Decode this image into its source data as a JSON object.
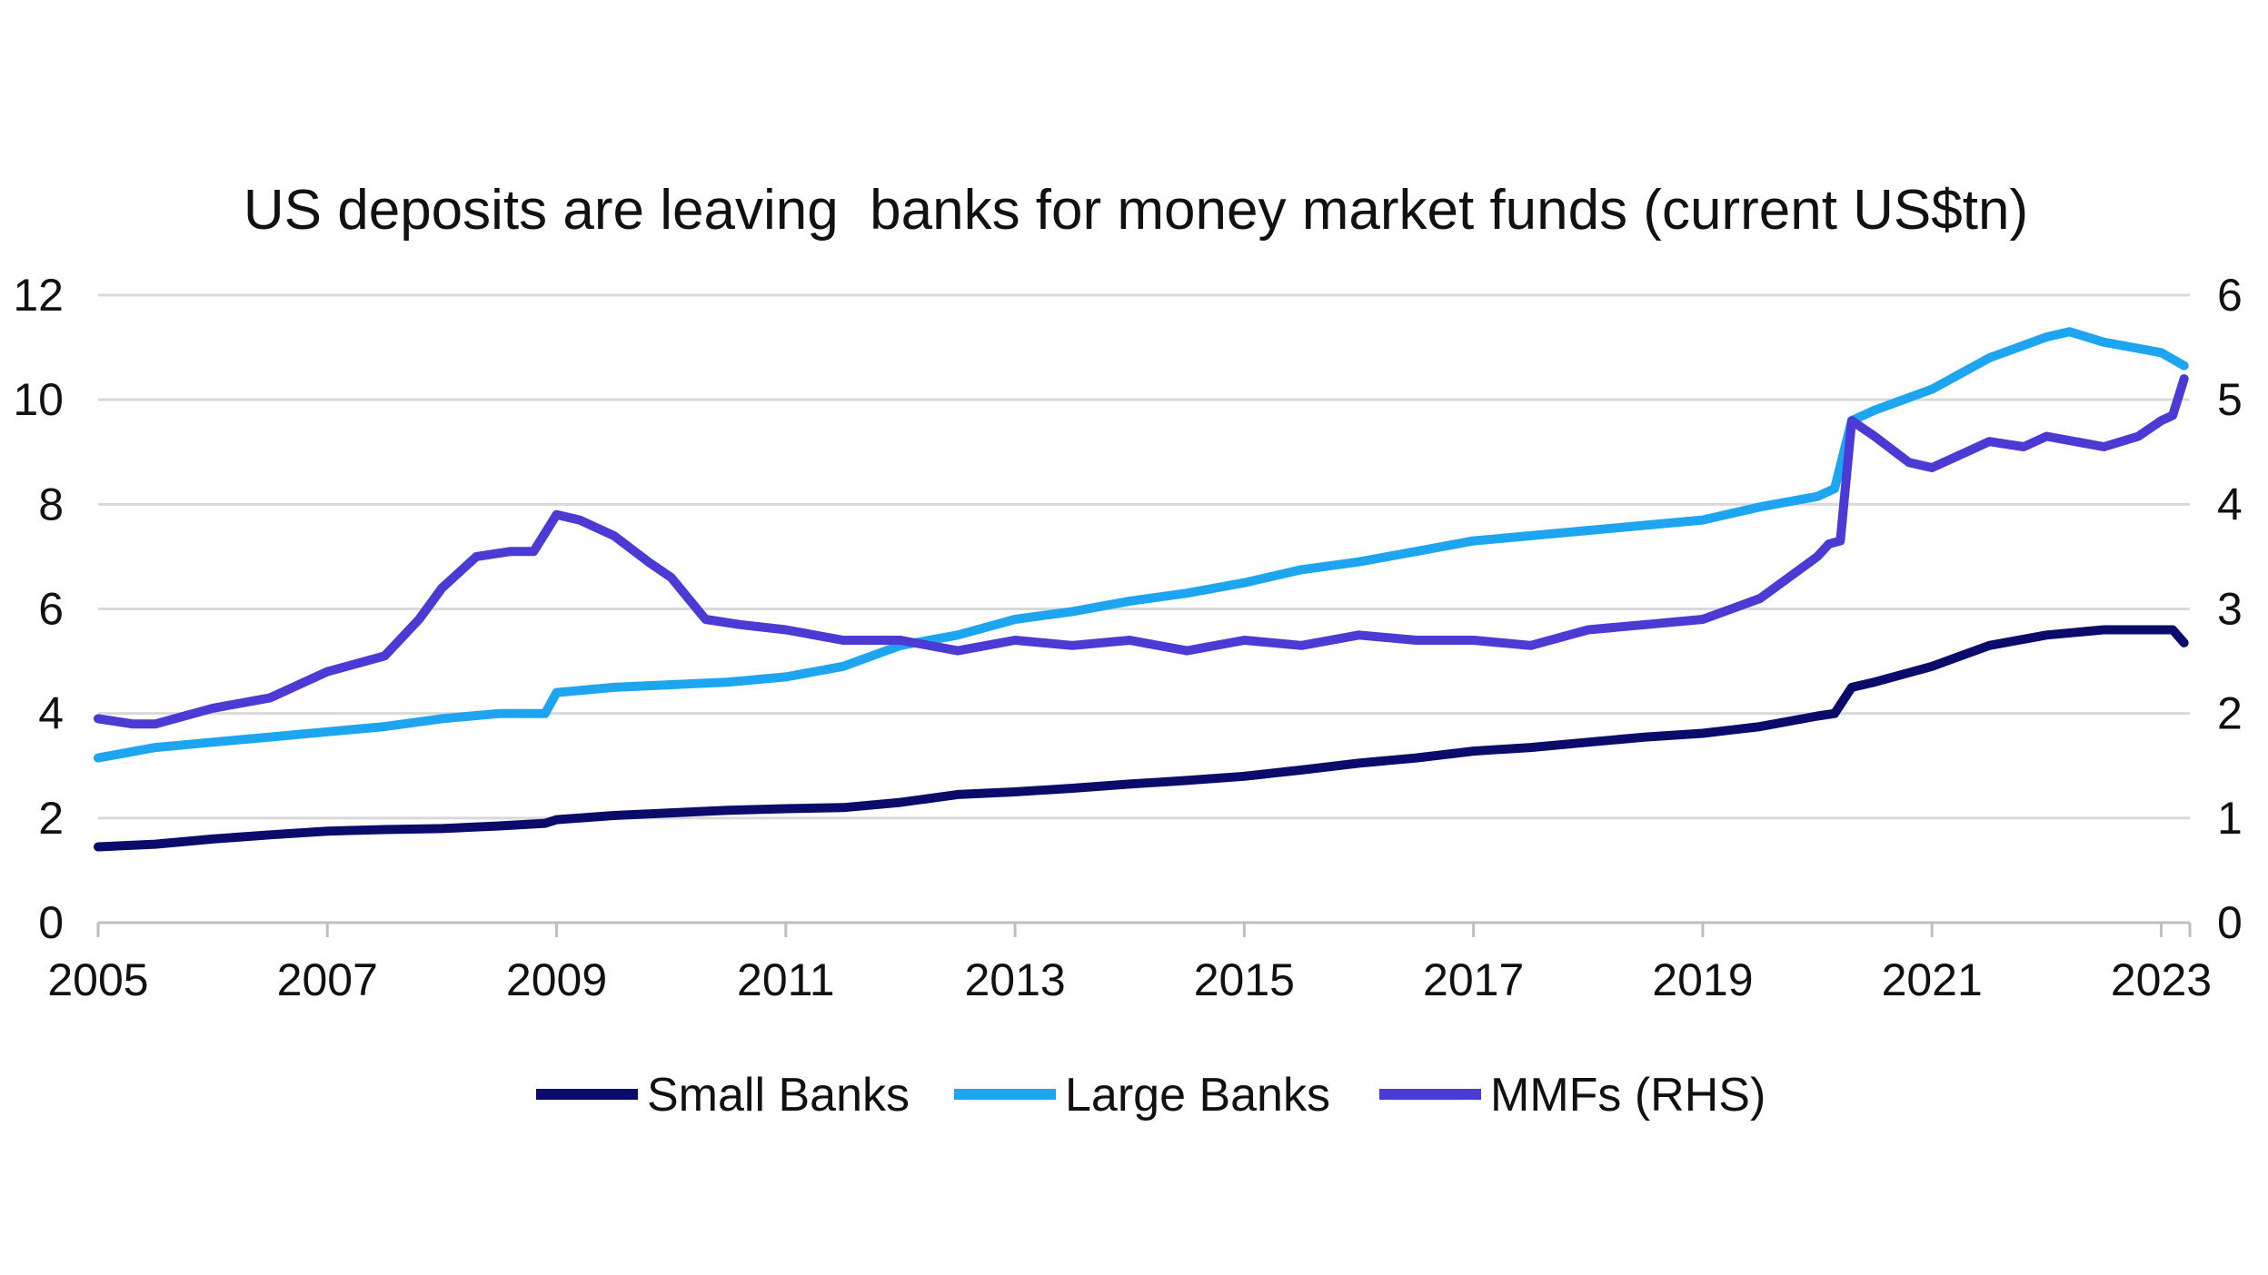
{
  "chart_data": {
    "type": "line",
    "title": "US deposits are leaving  banks for money market funds (current US$tn)",
    "xlabel": "",
    "ylabel": "",
    "x_ticks": [
      "2005",
      "2007",
      "2009",
      "2011",
      "2013",
      "2015",
      "2017",
      "2019",
      "2021",
      "2023"
    ],
    "xlim": [
      2005,
      2023.25
    ],
    "ylim_left": [
      0,
      12
    ],
    "yticks_left": [
      "0",
      "2",
      "4",
      "6",
      "8",
      "10",
      "12"
    ],
    "ylim_right": [
      0,
      6
    ],
    "yticks_right": [
      "0",
      "1",
      "2",
      "3",
      "4",
      "5",
      "6"
    ],
    "grid": true,
    "legend_position": "bottom",
    "series": [
      {
        "name": "Small Banks",
        "axis": "left",
        "color": "#0b0b6b",
        "x": [
          2005.0,
          2005.5,
          2006.0,
          2006.5,
          2007.0,
          2007.5,
          2008.0,
          2008.5,
          2008.9,
          2009.0,
          2009.5,
          2010.0,
          2010.5,
          2011.0,
          2011.5,
          2012.0,
          2012.5,
          2013.0,
          2013.5,
          2014.0,
          2014.5,
          2015.0,
          2015.5,
          2016.0,
          2016.5,
          2017.0,
          2017.5,
          2018.0,
          2018.5,
          2019.0,
          2019.5,
          2020.0,
          2020.15,
          2020.3,
          2020.5,
          2021.0,
          2021.5,
          2022.0,
          2022.5,
          2023.0,
          2023.1,
          2023.2
        ],
        "values": [
          1.45,
          1.5,
          1.6,
          1.68,
          1.75,
          1.78,
          1.8,
          1.85,
          1.9,
          1.97,
          2.05,
          2.1,
          2.15,
          2.18,
          2.2,
          2.3,
          2.45,
          2.5,
          2.57,
          2.65,
          2.72,
          2.8,
          2.92,
          3.05,
          3.15,
          3.28,
          3.35,
          3.45,
          3.55,
          3.62,
          3.75,
          3.95,
          4.0,
          4.5,
          4.6,
          4.9,
          5.3,
          5.5,
          5.6,
          5.6,
          5.6,
          5.35
        ]
      },
      {
        "name": "Large Banks",
        "axis": "left",
        "color": "#1ea5f0",
        "x": [
          2005.0,
          2005.5,
          2006.0,
          2006.5,
          2007.0,
          2007.5,
          2008.0,
          2008.5,
          2008.9,
          2009.0,
          2009.5,
          2010.0,
          2010.5,
          2011.0,
          2011.5,
          2012.0,
          2012.5,
          2013.0,
          2013.5,
          2014.0,
          2014.5,
          2015.0,
          2015.5,
          2016.0,
          2016.5,
          2017.0,
          2017.5,
          2018.0,
          2018.5,
          2019.0,
          2019.5,
          2020.0,
          2020.15,
          2020.3,
          2020.5,
          2021.0,
          2021.5,
          2022.0,
          2022.2,
          2022.5,
          2023.0,
          2023.2
        ],
        "values": [
          3.15,
          3.35,
          3.45,
          3.55,
          3.65,
          3.75,
          3.9,
          4.0,
          4.0,
          4.4,
          4.5,
          4.55,
          4.6,
          4.7,
          4.9,
          5.3,
          5.5,
          5.8,
          5.95,
          6.15,
          6.3,
          6.5,
          6.75,
          6.9,
          7.1,
          7.3,
          7.4,
          7.5,
          7.6,
          7.7,
          7.95,
          8.15,
          8.3,
          9.6,
          9.8,
          10.2,
          10.8,
          11.2,
          11.3,
          11.1,
          10.9,
          10.65
        ]
      },
      {
        "name": "MMFs (RHS)",
        "axis": "right",
        "color": "#4b3ad4",
        "x": [
          2005.0,
          2005.3,
          2005.5,
          2006.0,
          2006.5,
          2007.0,
          2007.5,
          2007.8,
          2008.0,
          2008.3,
          2008.6,
          2008.8,
          2009.0,
          2009.2,
          2009.5,
          2009.8,
          2010.0,
          2010.3,
          2010.6,
          2011.0,
          2011.5,
          2012.0,
          2012.5,
          2013.0,
          2013.5,
          2014.0,
          2014.5,
          2015.0,
          2015.5,
          2016.0,
          2016.5,
          2017.0,
          2017.5,
          2018.0,
          2018.5,
          2019.0,
          2019.5,
          2020.0,
          2020.1,
          2020.2,
          2020.3,
          2020.5,
          2020.8,
          2021.0,
          2021.3,
          2021.5,
          2021.8,
          2022.0,
          2022.5,
          2022.8,
          2023.0,
          2023.1,
          2023.2
        ],
        "values": [
          1.95,
          1.9,
          1.9,
          2.05,
          2.15,
          2.4,
          2.55,
          2.9,
          3.2,
          3.5,
          3.55,
          3.55,
          3.9,
          3.85,
          3.7,
          3.45,
          3.3,
          2.9,
          2.85,
          2.8,
          2.7,
          2.7,
          2.6,
          2.7,
          2.65,
          2.7,
          2.6,
          2.7,
          2.65,
          2.75,
          2.7,
          2.7,
          2.65,
          2.8,
          2.85,
          2.9,
          3.1,
          3.5,
          3.62,
          3.65,
          4.8,
          4.65,
          4.4,
          4.35,
          4.5,
          4.6,
          4.55,
          4.65,
          4.55,
          4.65,
          4.8,
          4.85,
          5.2
        ]
      }
    ]
  }
}
